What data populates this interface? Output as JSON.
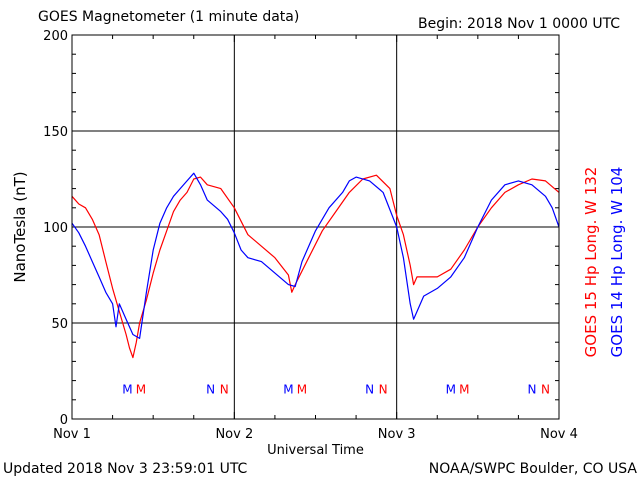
{
  "header": {
    "title": "GOES Magnetometer (1 minute data)",
    "begin": "Begin:  2018 Nov 1 0000 UTC"
  },
  "footer": {
    "updated": "Updated 2018 Nov  3 23:59:01 UTC",
    "source": "NOAA/SWPC Boulder, CO USA"
  },
  "colors": {
    "goes15": "#ff0000",
    "goes14": "#0000ff",
    "grid": "#000000"
  },
  "chart_data": {
    "type": "line",
    "title": "GOES Magnetometer (1 minute data)",
    "xlabel": "Universal Time",
    "ylabel": "NanoTesla (nT)",
    "xlim": [
      0,
      72
    ],
    "ylim": [
      0,
      200
    ],
    "yticks": [
      0,
      50,
      100,
      150,
      200
    ],
    "xticks": [
      {
        "t": 0,
        "label": "Nov 1"
      },
      {
        "t": 24,
        "label": "Nov 2"
      },
      {
        "t": 48,
        "label": "Nov 3"
      },
      {
        "t": 72,
        "label": "Nov 4"
      }
    ],
    "grid": true,
    "series": [
      {
        "name": "GOES 15 Hp  Long. W 132",
        "color": "#ff0000",
        "points": [
          [
            0,
            116
          ],
          [
            1,
            112
          ],
          [
            2,
            110
          ],
          [
            3,
            104
          ],
          [
            4,
            96
          ],
          [
            5,
            82
          ],
          [
            6,
            68
          ],
          [
            7,
            56
          ],
          [
            8,
            44
          ],
          [
            8.5,
            37
          ],
          [
            9,
            32
          ],
          [
            9.5,
            40
          ],
          [
            10,
            50
          ],
          [
            11,
            62
          ],
          [
            12,
            76
          ],
          [
            13,
            88
          ],
          [
            14,
            98
          ],
          [
            15,
            108
          ],
          [
            16,
            114
          ],
          [
            17,
            118
          ],
          [
            18,
            125
          ],
          [
            19,
            126
          ],
          [
            20,
            122
          ],
          [
            22,
            120
          ],
          [
            24,
            110
          ],
          [
            26,
            96
          ],
          [
            28,
            90
          ],
          [
            30,
            84
          ],
          [
            32,
            75
          ],
          [
            32.5,
            66
          ],
          [
            33,
            70
          ],
          [
            35,
            84
          ],
          [
            37,
            98
          ],
          [
            39,
            108
          ],
          [
            41,
            118
          ],
          [
            43,
            125
          ],
          [
            45,
            127
          ],
          [
            47,
            120
          ],
          [
            48,
            106
          ],
          [
            49,
            96
          ],
          [
            50,
            80
          ],
          [
            50.5,
            70
          ],
          [
            51,
            74
          ],
          [
            52,
            74
          ],
          [
            54,
            74
          ],
          [
            56,
            78
          ],
          [
            58,
            88
          ],
          [
            60,
            100
          ],
          [
            62,
            110
          ],
          [
            64,
            118
          ],
          [
            66,
            122
          ],
          [
            68,
            125
          ],
          [
            70,
            124
          ],
          [
            72,
            118
          ]
        ]
      },
      {
        "name": "GOES 14 Hp  Long. W 104",
        "color": "#0000ff",
        "points": [
          [
            0,
            102
          ],
          [
            1,
            97
          ],
          [
            2,
            90
          ],
          [
            3,
            82
          ],
          [
            4,
            74
          ],
          [
            5,
            66
          ],
          [
            6,
            60
          ],
          [
            6.5,
            48
          ],
          [
            7,
            60
          ],
          [
            8,
            52
          ],
          [
            9,
            44
          ],
          [
            10,
            42
          ],
          [
            11,
            66
          ],
          [
            12,
            88
          ],
          [
            13,
            102
          ],
          [
            14,
            110
          ],
          [
            15,
            116
          ],
          [
            16,
            120
          ],
          [
            17,
            124
          ],
          [
            18,
            128
          ],
          [
            19,
            122
          ],
          [
            20,
            114
          ],
          [
            22,
            108
          ],
          [
            23,
            104
          ],
          [
            24,
            97
          ],
          [
            25,
            88
          ],
          [
            26,
            84
          ],
          [
            28,
            82
          ],
          [
            30,
            76
          ],
          [
            32,
            70
          ],
          [
            33,
            69
          ],
          [
            34,
            82
          ],
          [
            36,
            98
          ],
          [
            38,
            110
          ],
          [
            40,
            118
          ],
          [
            41,
            124
          ],
          [
            42,
            126
          ],
          [
            44,
            124
          ],
          [
            46,
            118
          ],
          [
            48,
            100
          ],
          [
            49,
            84
          ],
          [
            50,
            60
          ],
          [
            50.5,
            52
          ],
          [
            51,
            56
          ],
          [
            52,
            64
          ],
          [
            54,
            68
          ],
          [
            56,
            74
          ],
          [
            58,
            84
          ],
          [
            60,
            100
          ],
          [
            62,
            114
          ],
          [
            64,
            122
          ],
          [
            66,
            124
          ],
          [
            68,
            122
          ],
          [
            70,
            116
          ],
          [
            71,
            110
          ],
          [
            72,
            100
          ]
        ]
      }
    ],
    "annotations": [
      {
        "t": 8.2,
        "text": "M",
        "color": "#0000ff"
      },
      {
        "t": 10.2,
        "text": "M",
        "color": "#ff0000"
      },
      {
        "t": 20.5,
        "text": "N",
        "color": "#0000ff"
      },
      {
        "t": 22.5,
        "text": "N",
        "color": "#ff0000"
      },
      {
        "t": 32.0,
        "text": "M",
        "color": "#0000ff"
      },
      {
        "t": 34.0,
        "text": "M",
        "color": "#ff0000"
      },
      {
        "t": 44.0,
        "text": "N",
        "color": "#0000ff"
      },
      {
        "t": 46.0,
        "text": "N",
        "color": "#ff0000"
      },
      {
        "t": 56.0,
        "text": "M",
        "color": "#0000ff"
      },
      {
        "t": 58.0,
        "text": "M",
        "color": "#ff0000"
      },
      {
        "t": 68.0,
        "text": "N",
        "color": "#0000ff"
      },
      {
        "t": 70.0,
        "text": "N",
        "color": "#ff0000"
      }
    ],
    "annotation_level": 16
  }
}
